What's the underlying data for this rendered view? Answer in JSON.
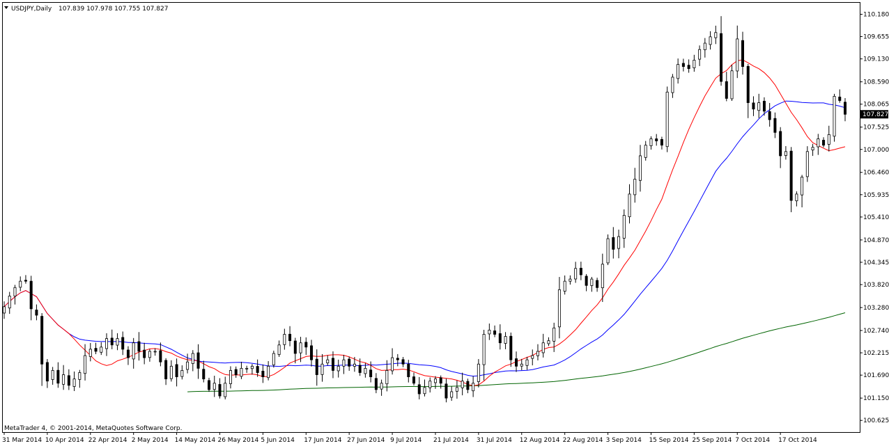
{
  "header": {
    "symbol": "USDJPY,Daily",
    "ohlc": "107.839 107.978 107.755 107.827"
  },
  "copyright": "MetaTrader 4, © 2001-2014, MetaQuotes Software Corp.",
  "current_price_label": "107.827",
  "colors": {
    "ma_fast": "#ff0000",
    "ma_mid": "#0000ff",
    "ma_slow": "#006400",
    "candle_bull_fill": "#ffffff",
    "candle_bear_fill": "#000000",
    "price_tag_bg": "#000000",
    "price_tag_text": "#ffffff"
  },
  "chart_data": {
    "type": "candlestick",
    "ylim": [
      100.35,
      110.45
    ],
    "y_ticks": [
      "110.180",
      "109.655",
      "109.130",
      "108.590",
      "108.065",
      "107.525",
      "107.000",
      "106.460",
      "105.935",
      "105.410",
      "104.870",
      "104.345",
      "103.820",
      "103.280",
      "102.740",
      "102.215",
      "101.690",
      "101.150",
      "100.625"
    ],
    "x_labels": [
      {
        "label": "31 Mar 2014",
        "index": 0
      },
      {
        "label": "10 Apr 2014",
        "index": 8
      },
      {
        "label": "22 Apr 2014",
        "index": 16
      },
      {
        "label": "2 May 2014",
        "index": 24
      },
      {
        "label": "14 May 2014",
        "index": 32
      },
      {
        "label": "26 May 2014",
        "index": 40
      },
      {
        "label": "5 Jun 2014",
        "index": 48
      },
      {
        "label": "17 Jun 2014",
        "index": 56
      },
      {
        "label": "27 Jun 2014",
        "index": 64
      },
      {
        "label": "9 Jul 2014",
        "index": 72
      },
      {
        "label": "21 Jul 2014",
        "index": 80
      },
      {
        "label": "31 Jul 2014",
        "index": 88
      },
      {
        "label": "12 Aug 2014",
        "index": 96
      },
      {
        "label": "22 Aug 2014",
        "index": 104
      },
      {
        "label": "3 Sep 2014",
        "index": 112
      },
      {
        "label": "15 Sep 2014",
        "index": 120
      },
      {
        "label": "25 Sep 2014",
        "index": 128
      },
      {
        "label": "7 Oct 2014",
        "index": 136
      },
      {
        "label": "17 Oct 2014",
        "index": 144
      }
    ],
    "closes": [
      103.3,
      103.55,
      103.75,
      103.9,
      103.9,
      103.25,
      103.1,
      101.95,
      101.55,
      101.8,
      101.5,
      101.7,
      101.45,
      101.6,
      101.75,
      102.15,
      102.3,
      102.25,
      102.35,
      102.55,
      102.4,
      102.55,
      102.3,
      102.1,
      102.45,
      102.25,
      102.1,
      102.25,
      102.25,
      102.0,
      101.6,
      101.9,
      101.65,
      101.8,
      102.0,
      102.2,
      101.85,
      101.6,
      101.35,
      101.5,
      101.2,
      101.5,
      101.8,
      101.7,
      101.85,
      101.85,
      101.9,
      101.75,
      101.65,
      101.9,
      102.2,
      102.4,
      102.65,
      102.5,
      102.2,
      102.45,
      102.35,
      102.05,
      101.7,
      101.95,
      102.05,
      101.8,
      101.9,
      102.05,
      101.9,
      101.95,
      101.75,
      101.85,
      101.65,
      101.35,
      101.5,
      101.8,
      102.1,
      102.05,
      101.95,
      101.65,
      101.5,
      101.25,
      101.4,
      101.55,
      101.6,
      101.5,
      101.15,
      101.3,
      101.4,
      101.55,
      101.35,
      101.5,
      101.95,
      102.65,
      102.75,
      102.65,
      102.45,
      102.6,
      102.05,
      101.9,
      101.95,
      102.05,
      102.15,
      102.25,
      102.45,
      102.5,
      102.8,
      103.7,
      103.9,
      103.95,
      104.2,
      104.05,
      103.8,
      103.95,
      103.75,
      104.3,
      104.9,
      104.65,
      104.95,
      105.45,
      105.95,
      106.3,
      106.85,
      107.1,
      107.25,
      107.2,
      107.1,
      108.35,
      108.7,
      109.0,
      108.95,
      108.9,
      109.1,
      109.35,
      109.5,
      109.65,
      109.75,
      108.6,
      108.2,
      108.85,
      109.6,
      108.95,
      108.1,
      107.95,
      108.1,
      107.9,
      107.7,
      107.4,
      106.85,
      106.95,
      105.8,
      105.95,
      106.35,
      106.95,
      107.05,
      107.25,
      107.1,
      107.35,
      108.25,
      108.15,
      107.827
    ],
    "ma_fast_label": "",
    "ma_mid_label": "",
    "ma_slow_label": ""
  }
}
